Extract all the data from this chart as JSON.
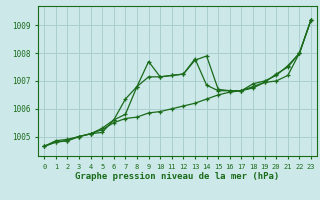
{
  "title": "Graphe pression niveau de la mer (hPa)",
  "bg_color": "#cce8e8",
  "grid_color": "#aacfcf",
  "line_color": "#1a6b1a",
  "xlim": [
    -0.5,
    23.5
  ],
  "ylim": [
    1004.3,
    1009.7
  ],
  "yticks": [
    1005,
    1006,
    1007,
    1008,
    1009
  ],
  "xticks": [
    0,
    1,
    2,
    3,
    4,
    5,
    6,
    7,
    8,
    9,
    10,
    11,
    12,
    13,
    14,
    15,
    16,
    17,
    18,
    19,
    20,
    21,
    22,
    23
  ],
  "series": [
    [
      1004.65,
      1004.8,
      1004.85,
      1005.0,
      1005.1,
      1005.25,
      1005.5,
      1005.65,
      1005.7,
      1005.85,
      1005.9,
      1006.0,
      1006.1,
      1006.2,
      1006.35,
      1006.5,
      1006.6,
      1006.65,
      1006.8,
      1006.95,
      1007.0,
      1007.2,
      1008.0,
      1009.2
    ],
    [
      1004.65,
      1004.8,
      1004.85,
      1005.0,
      1005.1,
      1005.3,
      1005.6,
      1005.8,
      1006.8,
      1007.15,
      1007.15,
      1007.2,
      1007.25,
      1007.75,
      1007.9,
      1006.7,
      1006.65,
      1006.65,
      1006.75,
      1006.95,
      1007.25,
      1007.5,
      1008.0,
      1009.2
    ],
    [
      1004.65,
      1004.85,
      1004.9,
      1005.0,
      1005.1,
      1005.15,
      1005.6,
      1006.35,
      1006.8,
      1007.7,
      1007.15,
      1007.2,
      1007.25,
      1007.8,
      1006.85,
      1006.65,
      1006.65,
      1006.65,
      1006.9,
      1007.0,
      1007.2,
      1007.55,
      1008.0,
      1009.2
    ]
  ],
  "title_fontsize": 6.5,
  "tick_fontsize": 5.5,
  "xtick_fontsize": 5.0
}
